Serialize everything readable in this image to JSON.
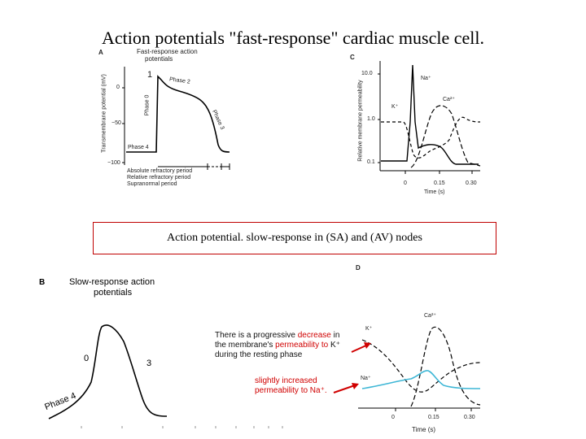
{
  "title": "Action potentials \"fast-response\" cardiac muscle cell.",
  "panel_a": {
    "letter": "A",
    "heading_line1": "Fast-response action",
    "heading_line2": "potentials",
    "ylabel": "Transmembrane potential (mV)",
    "yticks": [
      "0",
      "−50",
      "−100"
    ],
    "phase1": "1",
    "phase2": "Phase 2",
    "phase0": "Phase 0",
    "phase3": "Phase 3",
    "phase4": "Phase 4",
    "legend": [
      "Absolute refractory period",
      "Relative refractory period",
      "Supranormal period"
    ]
  },
  "panel_c": {
    "letter": "C",
    "ylabel": "Relative membrane permeability",
    "yticks": [
      "10.0",
      "1.0",
      "0.1"
    ],
    "xticks": [
      "0",
      "0.15",
      "0.30"
    ],
    "xlabel": "Time (s)",
    "na_label": "Na⁺",
    "k_label": "K⁺",
    "ca_label": "Ca²⁺"
  },
  "box_text": "Action potential. slow-response in (SA) and (AV) nodes",
  "panel_b": {
    "letter": "B",
    "heading_line1": "Slow-response action",
    "heading_line2": "potentials",
    "phase0": "0",
    "phase3": "3",
    "phase4": "Phase 4"
  },
  "panel_d": {
    "letter": "D",
    "k_label": "K⁺",
    "ca_label": "Ca²⁺",
    "na_label": "Na⁺",
    "xticks": [
      "0",
      "0.15",
      "0.30"
    ],
    "xlabel": "Time (s)"
  },
  "annotation_1": {
    "pre": "There is a progressive ",
    "red1": "decrease",
    "mid": " in the membrane's ",
    "red2": "permeability to",
    "post": " K⁺ during the resting phase"
  },
  "annotation_2": {
    "red1": "slightly increased",
    "red2": "permeability to Na⁺."
  },
  "colors": {
    "accent_red": "#d00000",
    "na_curve_blue": "#3fb7d6"
  }
}
